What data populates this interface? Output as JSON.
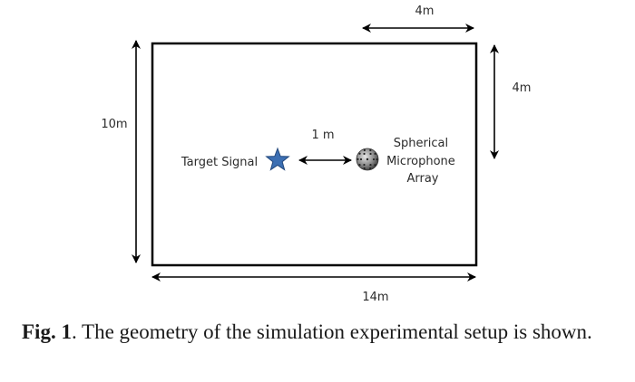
{
  "diagram": {
    "labels": {
      "top_width": "4m",
      "right_height": "4m",
      "left_height": "10m",
      "bottom_width": "14m",
      "distance": "1 m",
      "target": "Target Signal",
      "array_line1": "Spherical",
      "array_line2": "Microphone",
      "array_line3": "Array"
    },
    "colors": {
      "room_border": "#000000",
      "star_fill": "#3c6fb3",
      "star_stroke": "#24497d",
      "array_fill": "#8c8c8c"
    },
    "icons": {
      "target": "star-icon",
      "array": "spherical-microphone-array-icon"
    }
  },
  "caption": {
    "label": "Fig. 1",
    "text": ". The geometry of the simulation experimental setup is shown."
  }
}
